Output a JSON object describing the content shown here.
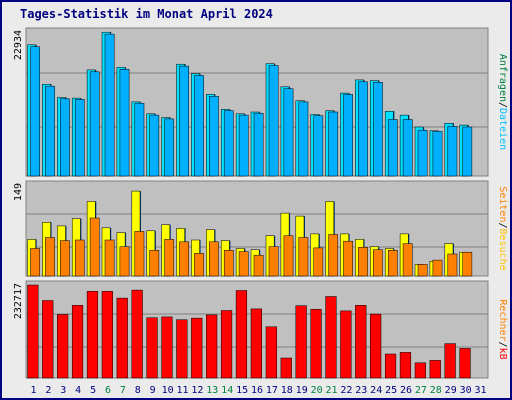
{
  "colors": {
    "title": "#000080",
    "frame": "#000080",
    "panel_bg": "#C0C0C0",
    "hits": "#00E0FF",
    "hits_shadow": "#004080",
    "files": "#00B0FF",
    "sites": "#FFFF00",
    "visits": "#FF8000",
    "kbytes": "#FF0000",
    "weekday_label": "#000080",
    "weekend_label": "#008040",
    "legend_sep": "#000000"
  },
  "chart_data": [
    {
      "type": "bar",
      "title": "Tages-Statistik im Monat April 2024",
      "ymax_label": "22934",
      "ylim": [
        0,
        22934
      ],
      "categories": [
        "1",
        "2",
        "3",
        "4",
        "5",
        "6",
        "7",
        "8",
        "9",
        "10",
        "11",
        "12",
        "13",
        "14",
        "15",
        "16",
        "17",
        "18",
        "19",
        "20",
        "21",
        "22",
        "23",
        "24",
        "25",
        "26",
        "27",
        "28",
        "29",
        "30",
        "31"
      ],
      "weekend_days": [
        "6",
        "7",
        "13",
        "14",
        "20",
        "21",
        "27",
        "28"
      ],
      "series": [
        {
          "name": "Anfragen",
          "values": [
            20900,
            14600,
            12500,
            12400,
            16900,
            22900,
            17300,
            11800,
            9900,
            9300,
            17800,
            16300,
            13000,
            10600,
            9900,
            10200,
            17900,
            14200,
            12000,
            9800,
            10400,
            13200,
            15300,
            15200,
            10300,
            9700,
            7800,
            7200,
            8400,
            8100,
            null
          ]
        },
        {
          "name": "Dateien",
          "values": [
            20600,
            14300,
            12300,
            12200,
            16600,
            22600,
            17000,
            11600,
            9700,
            9100,
            17500,
            16000,
            12700,
            10400,
            9700,
            10000,
            17600,
            13900,
            11800,
            9600,
            10200,
            13000,
            15000,
            14900,
            9000,
            9000,
            7300,
            7100,
            7900,
            7800,
            null
          ]
        }
      ],
      "legend": [
        "Anfragen",
        "Dateien"
      ],
      "legend_sep": "/"
    },
    {
      "type": "bar",
      "ymax_label": "149",
      "ylim": [
        0,
        149
      ],
      "categories": [
        "1",
        "2",
        "3",
        "4",
        "5",
        "6",
        "7",
        "8",
        "9",
        "10",
        "11",
        "12",
        "13",
        "14",
        "15",
        "16",
        "17",
        "18",
        "19",
        "20",
        "21",
        "22",
        "23",
        "24",
        "25",
        "26",
        "27",
        "28",
        "29",
        "30",
        "31"
      ],
      "series": [
        {
          "name": "Seiten",
          "values": [
            60,
            88,
            82,
            94,
            122,
            79,
            71,
            139,
            74,
            84,
            78,
            59,
            76,
            58,
            45,
            43,
            66,
            103,
            98,
            69,
            122,
            69,
            60,
            48,
            45,
            69,
            19,
            24,
            53,
            39,
            null
          ]
        },
        {
          "name": "Besuche",
          "values": [
            45,
            63,
            58,
            59,
            95,
            59,
            48,
            73,
            42,
            60,
            56,
            37,
            56,
            42,
            40,
            34,
            48,
            66,
            63,
            46,
            68,
            57,
            47,
            43,
            42,
            53,
            19,
            26,
            36,
            39,
            null
          ]
        }
      ],
      "legend": [
        "Seiten",
        "Besuche"
      ],
      "legend_sep": "/"
    },
    {
      "type": "bar",
      "ymax_label": "232717",
      "ylim": [
        0,
        232717
      ],
      "categories": [
        "1",
        "2",
        "3",
        "4",
        "5",
        "6",
        "7",
        "8",
        "9",
        "10",
        "11",
        "12",
        "13",
        "14",
        "15",
        "16",
        "17",
        "18",
        "19",
        "20",
        "21",
        "22",
        "23",
        "24",
        "25",
        "26",
        "27",
        "28",
        "29",
        "30",
        "31"
      ],
      "series": [
        {
          "name": "Rechner",
          "values": [
            null,
            null,
            null,
            null,
            null,
            null,
            null,
            null,
            null,
            null,
            null,
            null,
            null,
            null,
            null,
            null,
            null,
            null,
            null,
            null,
            null,
            null,
            null,
            null,
            null,
            null,
            null,
            null,
            null,
            null,
            null
          ]
        },
        {
          "name": "kB",
          "values": [
            232717,
            194000,
            159000,
            182000,
            217000,
            217000,
            200000,
            220000,
            151000,
            153000,
            146000,
            150000,
            158000,
            169000,
            219000,
            173000,
            128000,
            50000,
            181000,
            172000,
            204000,
            168000,
            182000,
            160000,
            60000,
            64000,
            38000,
            44000,
            86000,
            74000,
            null
          ]
        }
      ],
      "legend": [
        "Rechner",
        "kB"
      ],
      "legend_sep": "/"
    }
  ]
}
